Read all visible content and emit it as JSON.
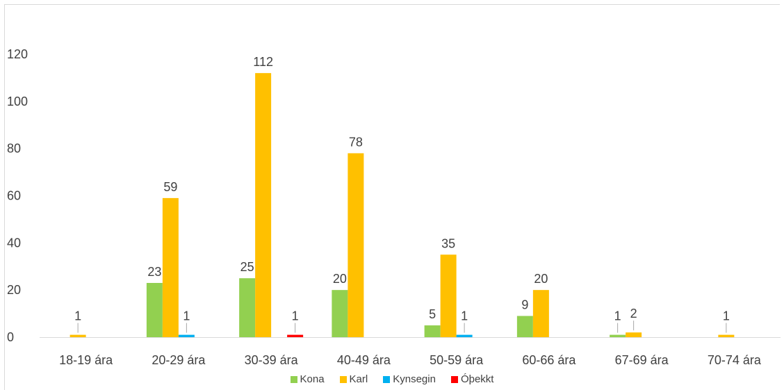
{
  "chart_data": {
    "type": "bar",
    "categories": [
      "18-19 ára",
      "20-29 ára",
      "30-39 ára",
      "40-49 ára",
      "50-59 ára",
      "60-66 ára",
      "67-69 ára",
      "70-74 ára"
    ],
    "series": [
      {
        "name": "Kona",
        "color": "#92d050",
        "values": [
          0,
          23,
          25,
          20,
          5,
          9,
          1,
          0
        ]
      },
      {
        "name": "Karl",
        "color": "#ffc000",
        "values": [
          1,
          59,
          112,
          78,
          35,
          20,
          2,
          1
        ]
      },
      {
        "name": "Kynsegin",
        "color": "#00b0f0",
        "values": [
          0,
          1,
          0,
          0,
          1,
          0,
          0,
          0
        ]
      },
      {
        "name": "Óþekkt",
        "color": "#ff0000",
        "values": [
          0,
          0,
          1,
          0,
          0,
          0,
          0,
          0
        ]
      }
    ],
    "ylim": [
      0,
      130
    ],
    "yticks": [
      0,
      20,
      40,
      60,
      80,
      100,
      120
    ],
    "title": "",
    "xlabel": "",
    "ylabel": "",
    "grid": false,
    "legend": "bottom"
  }
}
